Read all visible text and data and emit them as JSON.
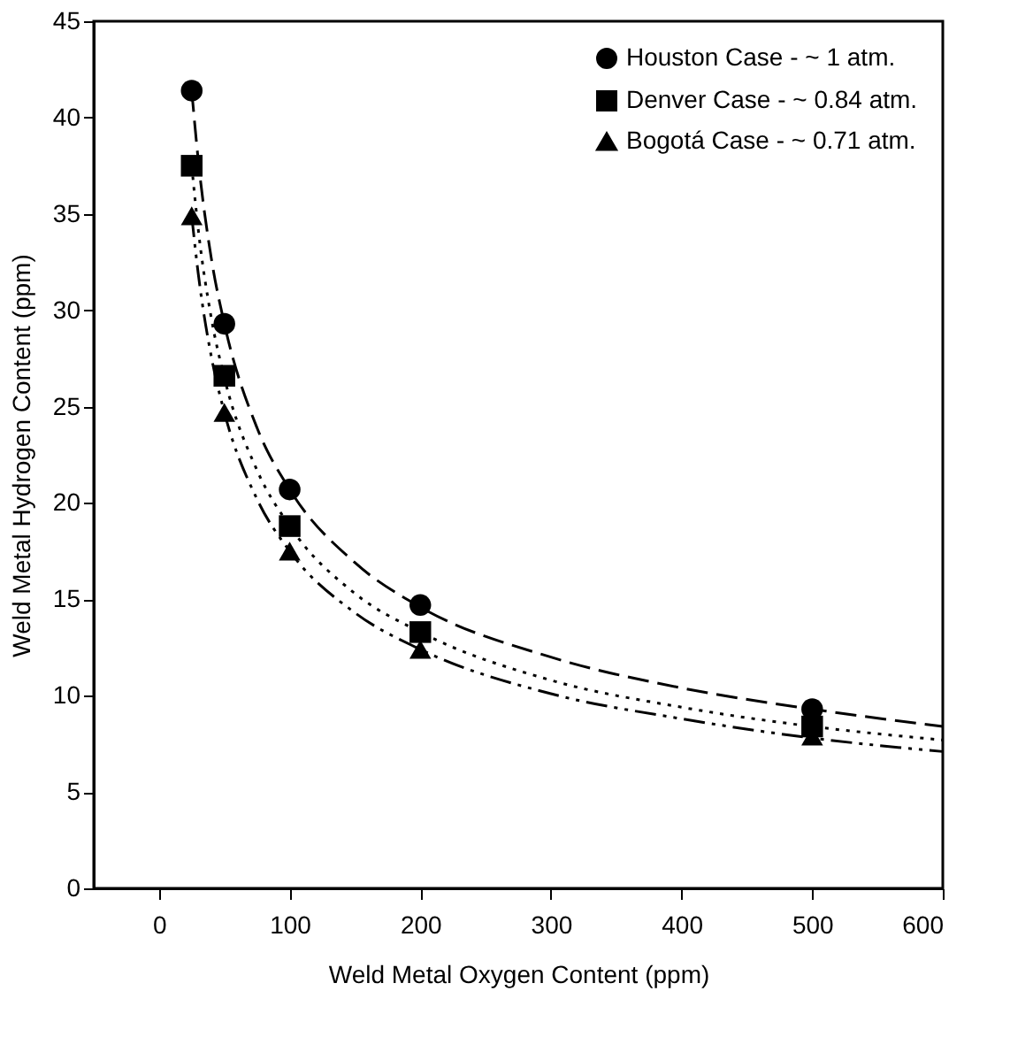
{
  "chart_data": {
    "type": "scatter",
    "xlabel": "Weld Metal Oxygen Content (ppm)",
    "ylabel": "Weld Metal Hydrogen Content (ppm)",
    "xlim": [
      -50,
      600
    ],
    "xticks": [
      0,
      100,
      200,
      300,
      400,
      500,
      600
    ],
    "ylim": [
      0,
      45
    ],
    "yticks": [
      0,
      5,
      10,
      15,
      20,
      25,
      30,
      35,
      40,
      45
    ],
    "grid": false,
    "legend": "top right",
    "series": [
      {
        "name": "Houston Case - ~ 1 atm.",
        "type": "scatter",
        "marker": "circle",
        "color": "#000000",
        "x": [
          25,
          50,
          100,
          200,
          500
        ],
        "values": [
          41.4,
          29.3,
          20.7,
          14.7,
          9.3
        ]
      },
      {
        "name": "Denver Case - ~ 0.84 atm.",
        "type": "scatter",
        "marker": "square",
        "color": "#000000",
        "x": [
          25,
          50,
          100,
          200,
          500
        ],
        "values": [
          37.5,
          26.6,
          18.8,
          13.3,
          8.4
        ]
      },
      {
        "name": "Bogotá Case - ~ 0.71 atm.",
        "type": "scatter",
        "marker": "triangle",
        "color": "#000000",
        "x": [
          25,
          50,
          100,
          200,
          500
        ],
        "values": [
          34.9,
          24.7,
          17.5,
          12.4,
          7.9
        ]
      },
      {
        "type": "line",
        "line_style": "dashed",
        "color": "#000000",
        "x": [
          25,
          30,
          40,
          50,
          75,
          100,
          150,
          200,
          300,
          400,
          500,
          600
        ],
        "values": [
          41.4,
          37.8,
          32.7,
          29.3,
          23.9,
          20.7,
          16.9,
          14.6,
          12.0,
          10.4,
          9.3,
          8.4
        ]
      },
      {
        "type": "line",
        "line_style": "dotted",
        "color": "#000000",
        "x": [
          25,
          30,
          40,
          50,
          75,
          100,
          150,
          200,
          300,
          400,
          500,
          600
        ],
        "values": [
          37.5,
          34.2,
          29.6,
          26.5,
          21.7,
          18.8,
          15.3,
          13.3,
          10.8,
          9.4,
          8.4,
          7.7
        ]
      },
      {
        "type": "line",
        "line_style": "dashed",
        "color": "#000000",
        "x": [
          25,
          30,
          40,
          50,
          75,
          100,
          150,
          200,
          300,
          400,
          500,
          600
        ],
        "values": [
          34.9,
          31.9,
          27.6,
          24.7,
          20.2,
          17.5,
          14.3,
          12.4,
          10.1,
          8.8,
          7.8,
          7.1
        ]
      }
    ]
  }
}
